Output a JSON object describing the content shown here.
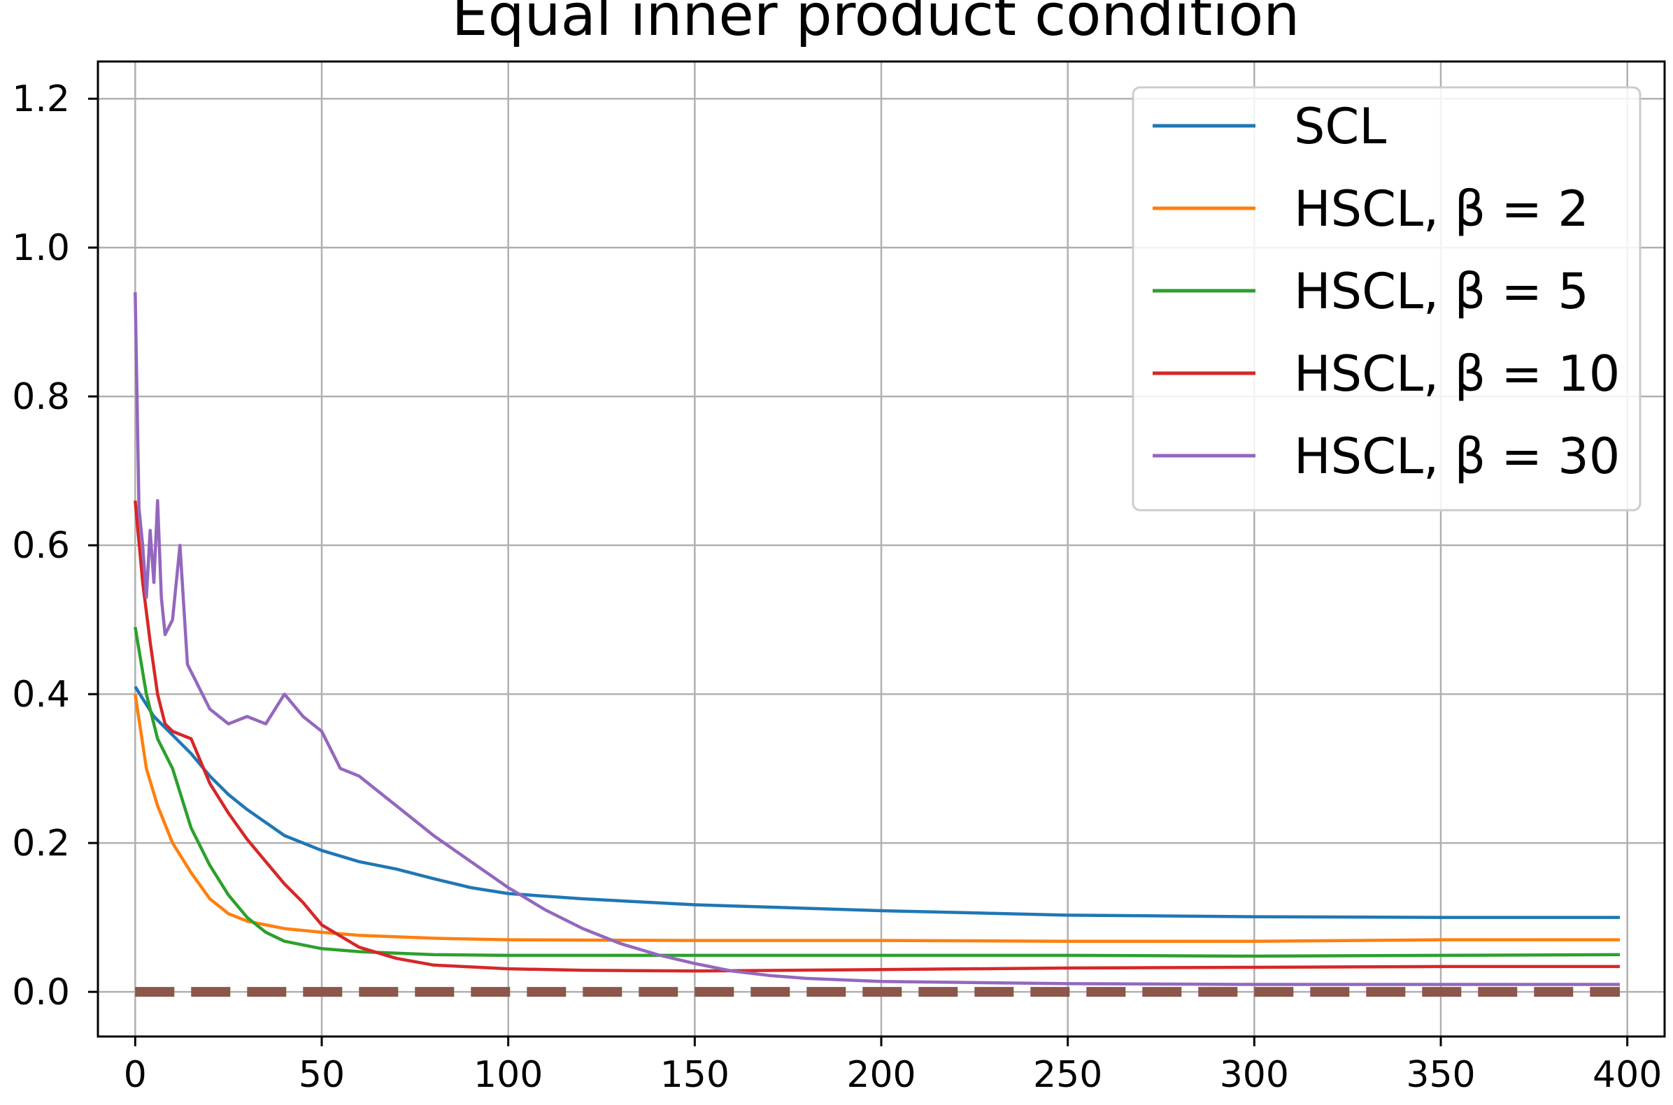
{
  "chart_data": {
    "type": "line",
    "title": "Equal inner product condition",
    "xlabel": "",
    "ylabel": "",
    "xlim": [
      -10,
      410
    ],
    "ylim": [
      -0.06,
      1.25
    ],
    "grid": true,
    "legend_placement": "top-right",
    "xticks": [
      0,
      50,
      100,
      150,
      200,
      250,
      300,
      350,
      400
    ],
    "yticks": [
      0.0,
      0.2,
      0.4,
      0.6,
      0.8,
      1.0,
      1.2
    ],
    "xtick_labels": [
      "0",
      "50",
      "100",
      "150",
      "200",
      "250",
      "300",
      "350",
      "400"
    ],
    "ytick_labels": [
      "0.0",
      "0.2",
      "0.4",
      "0.6",
      "0.8",
      "1.0",
      "1.2"
    ],
    "series": [
      {
        "name": "SCL",
        "color": "#1f77b4",
        "x": [
          0,
          5,
          10,
          15,
          20,
          25,
          30,
          40,
          50,
          60,
          70,
          80,
          90,
          100,
          120,
          150,
          200,
          250,
          300,
          350,
          398
        ],
        "y": [
          0.41,
          0.37,
          0.345,
          0.32,
          0.29,
          0.265,
          0.245,
          0.21,
          0.19,
          0.175,
          0.165,
          0.152,
          0.14,
          0.132,
          0.125,
          0.117,
          0.109,
          0.103,
          0.101,
          0.1,
          0.1
        ]
      },
      {
        "name": "HSCL, β = 2",
        "color": "#ff7f0e",
        "x": [
          0,
          3,
          6,
          10,
          15,
          20,
          25,
          30,
          40,
          50,
          60,
          80,
          100,
          150,
          200,
          250,
          300,
          350,
          398
        ],
        "y": [
          0.4,
          0.3,
          0.25,
          0.2,
          0.16,
          0.125,
          0.105,
          0.095,
          0.085,
          0.08,
          0.076,
          0.072,
          0.07,
          0.069,
          0.069,
          0.068,
          0.068,
          0.07,
          0.07
        ]
      },
      {
        "name": "HSCL, β = 5",
        "color": "#2ca02c",
        "x": [
          0,
          3,
          6,
          10,
          15,
          20,
          25,
          30,
          35,
          40,
          50,
          60,
          80,
          100,
          150,
          200,
          250,
          300,
          350,
          398
        ],
        "y": [
          0.49,
          0.4,
          0.34,
          0.3,
          0.22,
          0.17,
          0.13,
          0.1,
          0.08,
          0.068,
          0.058,
          0.054,
          0.05,
          0.049,
          0.049,
          0.049,
          0.049,
          0.048,
          0.049,
          0.05
        ]
      },
      {
        "name": "HSCL, β = 10",
        "color": "#d62728",
        "x": [
          0,
          2,
          4,
          6,
          8,
          10,
          15,
          20,
          25,
          30,
          35,
          40,
          45,
          50,
          60,
          70,
          80,
          100,
          120,
          150,
          200,
          250,
          300,
          350,
          398
        ],
        "y": [
          0.66,
          0.55,
          0.47,
          0.4,
          0.36,
          0.35,
          0.34,
          0.28,
          0.24,
          0.205,
          0.175,
          0.145,
          0.12,
          0.09,
          0.06,
          0.045,
          0.036,
          0.031,
          0.029,
          0.028,
          0.03,
          0.032,
          0.033,
          0.034,
          0.034
        ]
      },
      {
        "name": "HSCL, β = 30",
        "color": "#9467bd",
        "x": [
          0,
          1,
          2,
          3,
          4,
          5,
          6,
          7,
          8,
          10,
          12,
          14,
          16,
          20,
          25,
          30,
          35,
          40,
          45,
          50,
          55,
          60,
          70,
          80,
          90,
          100,
          110,
          120,
          130,
          140,
          150,
          160,
          170,
          180,
          200,
          250,
          300,
          350,
          398
        ],
        "y": [
          0.94,
          0.65,
          0.6,
          0.53,
          0.62,
          0.55,
          0.66,
          0.53,
          0.48,
          0.5,
          0.6,
          0.44,
          0.42,
          0.38,
          0.36,
          0.37,
          0.36,
          0.4,
          0.37,
          0.35,
          0.3,
          0.29,
          0.25,
          0.21,
          0.175,
          0.14,
          0.11,
          0.085,
          0.065,
          0.05,
          0.038,
          0.028,
          0.022,
          0.018,
          0.014,
          0.011,
          0.01,
          0.01,
          0.01
        ]
      },
      {
        "name": "",
        "color": "#8c564b",
        "style": "dashed",
        "x": [
          0,
          398
        ],
        "y": [
          0.0,
          0.0
        ]
      }
    ]
  }
}
